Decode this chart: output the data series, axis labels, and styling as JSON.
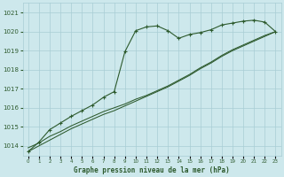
{
  "title": "Graphe pression niveau de la mer (hPa)",
  "background_color": "#cde8ec",
  "grid_color": "#a8cdd4",
  "line_color": "#2d5a2d",
  "x_labels": [
    "0",
    "1",
    "2",
    "3",
    "4",
    "5",
    "6",
    "7",
    "8",
    "9",
    "10",
    "11",
    "12",
    "13",
    "14",
    "15",
    "16",
    "17",
    "18",
    "19",
    "20",
    "21",
    "22",
    "23"
  ],
  "xlim": [
    -0.5,
    23.5
  ],
  "ylim": [
    1013.5,
    1021.5
  ],
  "yticks": [
    1014,
    1015,
    1016,
    1017,
    1018,
    1019,
    1020,
    1021
  ],
  "series1": [
    1013.7,
    1014.2,
    1014.85,
    1015.2,
    1015.55,
    1015.85,
    1016.15,
    1016.55,
    1016.85,
    1018.95,
    1020.05,
    1020.25,
    1020.3,
    1020.05,
    1019.65,
    1019.85,
    1019.95,
    1020.1,
    1020.35,
    1020.45,
    1020.55,
    1020.6,
    1020.5,
    1020.0
  ],
  "series2": [
    1013.7,
    1014.0,
    1014.3,
    1014.6,
    1014.9,
    1015.15,
    1015.4,
    1015.65,
    1015.85,
    1016.1,
    1016.35,
    1016.6,
    1016.85,
    1017.1,
    1017.4,
    1017.7,
    1018.05,
    1018.35,
    1018.7,
    1019.0,
    1019.25,
    1019.5,
    1019.75,
    1020.0
  ],
  "series3": [
    1013.9,
    1014.15,
    1014.5,
    1014.75,
    1015.05,
    1015.3,
    1015.55,
    1015.8,
    1016.0,
    1016.2,
    1016.45,
    1016.65,
    1016.9,
    1017.15,
    1017.45,
    1017.75,
    1018.1,
    1018.4,
    1018.75,
    1019.05,
    1019.3,
    1019.55,
    1019.8,
    1020.0
  ]
}
